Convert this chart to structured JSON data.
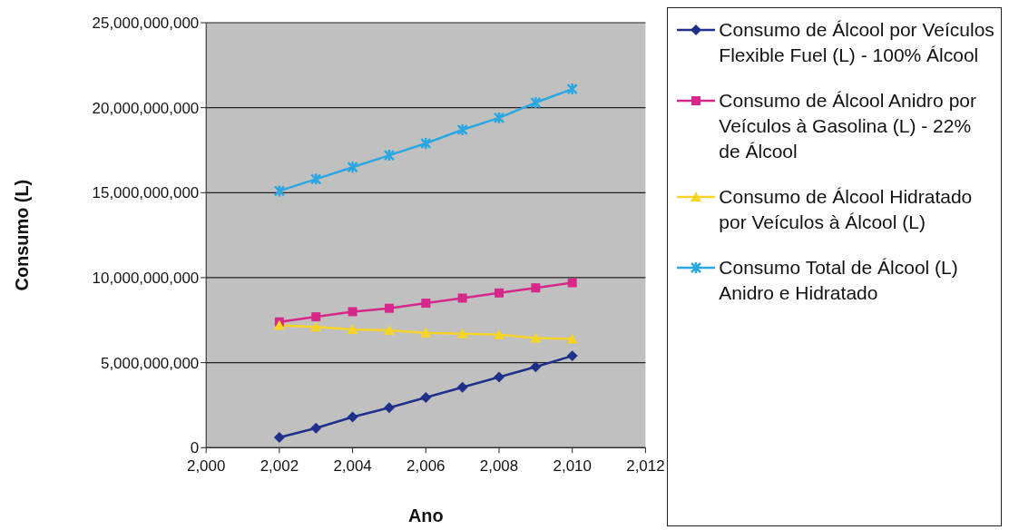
{
  "chart_data": {
    "type": "line",
    "xlabel": "Ano",
    "ylabel": "Consumo (L)",
    "x": [
      2002,
      2003,
      2004,
      2005,
      2006,
      2007,
      2008,
      2009,
      2010
    ],
    "xlim": [
      2000,
      2012
    ],
    "xticks": [
      {
        "value": 2000,
        "label": "2,000"
      },
      {
        "value": 2002,
        "label": "2,002"
      },
      {
        "value": 2004,
        "label": "2,004"
      },
      {
        "value": 2006,
        "label": "2,006"
      },
      {
        "value": 2008,
        "label": "2,008"
      },
      {
        "value": 2010,
        "label": "2,010"
      },
      {
        "value": 2012,
        "label": "2,012"
      }
    ],
    "ylim": [
      0,
      25000000000
    ],
    "yticks": [
      {
        "value": 0,
        "label": "0"
      },
      {
        "value": 5000000000,
        "label": "5,000,000,000"
      },
      {
        "value": 10000000000,
        "label": "10,000,000,000"
      },
      {
        "value": 15000000000,
        "label": "15,000,000,000"
      },
      {
        "value": 20000000000,
        "label": "20,000,000,000"
      },
      {
        "value": 25000000000,
        "label": "25,000,000,000"
      }
    ],
    "grid": "y",
    "legend": "right",
    "series": [
      {
        "name": "Consumo de Álcool por Veículos Flexible Fuel (L) - 100% Álcool",
        "color": "#1f2f8a",
        "marker": "diamond",
        "values": [
          600000000,
          1150000000,
          1800000000,
          2350000000,
          2950000000,
          3550000000,
          4150000000,
          4750000000,
          5400000000
        ]
      },
      {
        "name": "Consumo de Álcool Anidro por Veículos à Gasolina (L) - 22% de Álcool",
        "color": "#d6278a",
        "marker": "square",
        "values": [
          7400000000,
          7700000000,
          8000000000,
          8200000000,
          8500000000,
          8800000000,
          9100000000,
          9400000000,
          9700000000
        ]
      },
      {
        "name": "Consumo de Álcool Hidratado por Veículos à Álcool (L)",
        "color": "#f5d327",
        "marker": "triangle",
        "values": [
          7200000000,
          7100000000,
          6950000000,
          6900000000,
          6750000000,
          6700000000,
          6650000000,
          6450000000,
          6400000000
        ]
      },
      {
        "name": "Consumo Total de Álcool (L) Anidro e Hidratado",
        "color": "#2aa7e0",
        "marker": "cross",
        "values": [
          15100000000,
          15800000000,
          16500000000,
          17200000000,
          17900000000,
          18700000000,
          19400000000,
          20300000000,
          21100000000
        ]
      }
    ]
  }
}
